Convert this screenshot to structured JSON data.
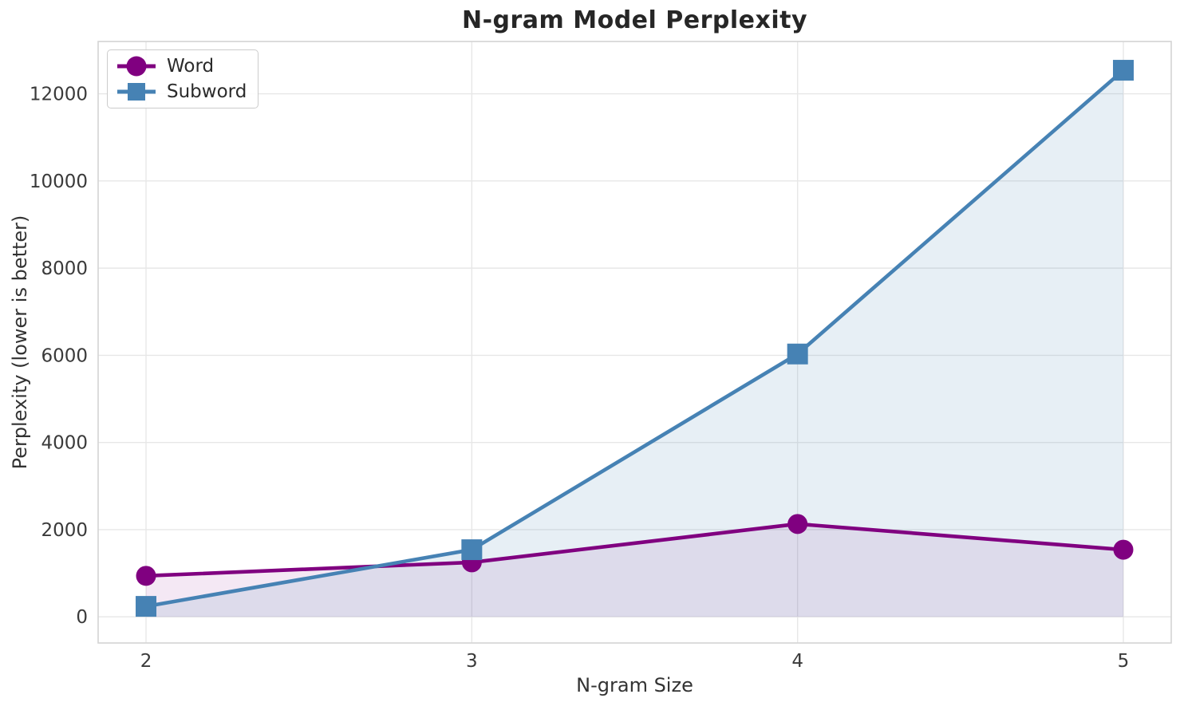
{
  "chart_data": {
    "type": "line",
    "title": "N-gram Model Perplexity",
    "xlabel": "N-gram Size",
    "ylabel": "Perplexity (lower is better)",
    "x": [
      2,
      3,
      4,
      5
    ],
    "xticks": [
      2,
      3,
      4,
      5
    ],
    "yticks": [
      0,
      2000,
      4000,
      6000,
      8000,
      10000,
      12000
    ],
    "xlim": [
      1.853,
      5.147
    ],
    "ylim": [
      -600,
      13200
    ],
    "grid": true,
    "legend_position": "upper left",
    "series": [
      {
        "name": "Word",
        "marker": "circle",
        "color": "#800080",
        "fill_alpha": 0.09,
        "values": [
          940,
          1250,
          2130,
          1540
        ]
      },
      {
        "name": "Subword",
        "marker": "square",
        "color": "#4682B4",
        "fill_alpha": 0.13,
        "values": [
          240,
          1540,
          6030,
          12540
        ]
      }
    ]
  }
}
